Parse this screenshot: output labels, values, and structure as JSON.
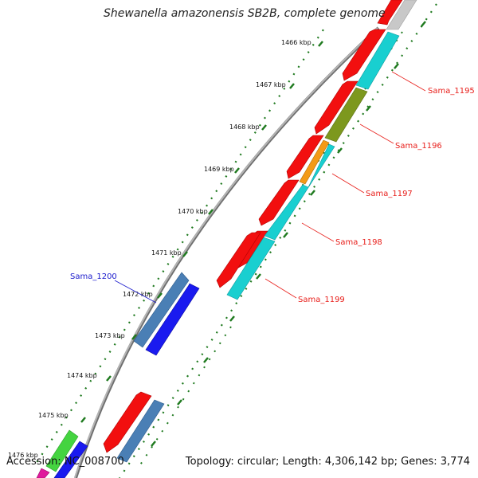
{
  "title": "Shewanella amazonensis SB2B, complete genome",
  "footer": {
    "accession": "Accession: NC_008700",
    "summary": "Topology: circular; Length: 4,306,142 bp; Genes: 3,774"
  },
  "ruler": [
    {
      "label": "1466 kbp"
    },
    {
      "label": "1467 kbp"
    },
    {
      "label": "1468 kbp"
    },
    {
      "label": "1469 kbp"
    },
    {
      "label": "1470 kbp"
    },
    {
      "label": "1471 kbp"
    },
    {
      "label": "1472 kbp"
    },
    {
      "label": "1473 kbp"
    },
    {
      "label": "1474 kbp"
    },
    {
      "label": "1475 kbp"
    },
    {
      "label": "1476 kbp"
    }
  ],
  "gene_labels": [
    {
      "name": "Sama_1195",
      "color": "#e8201c"
    },
    {
      "name": "Sama_1196",
      "color": "#e8201c"
    },
    {
      "name": "Sama_1197",
      "color": "#e8201c"
    },
    {
      "name": "Sama_1198",
      "color": "#e8201c"
    },
    {
      "name": "Sama_1199",
      "color": "#e8201c"
    },
    {
      "name": "Sama_1200",
      "color": "#1a1acc"
    }
  ],
  "feature_colors": {
    "cds_forward": "#f20f0f",
    "cds_reverse": "#1a1aef",
    "steelblue": "#4a7fb5",
    "cyan": "#19cfd0",
    "olive": "#7d981e",
    "orange": "#f39a17",
    "gray": "#c8c8c8",
    "green": "#44d440",
    "magenta": "#e0199c",
    "ruler_dots": "#1f7a1f",
    "backbone": "#9a9a9a"
  }
}
